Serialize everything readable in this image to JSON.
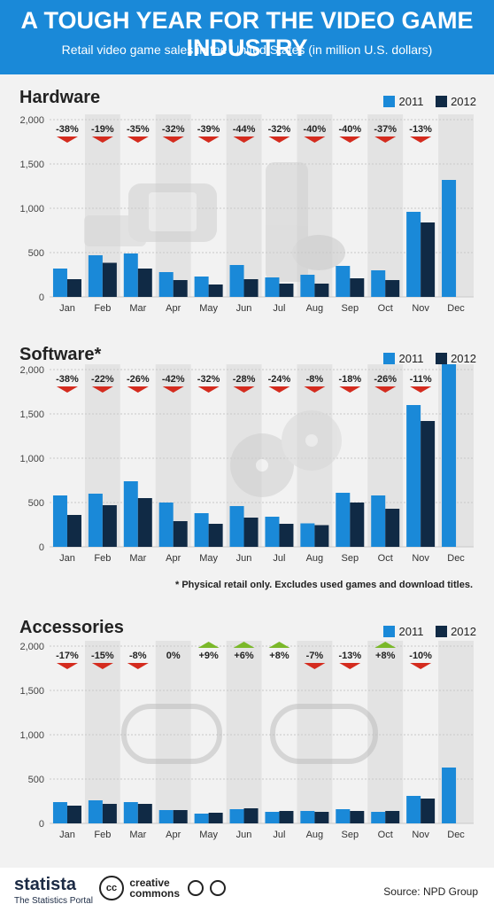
{
  "header": {
    "title": "A TOUGH YEAR FOR THE VIDEO GAME INDUSTRY",
    "subtitle": "Retail video game sales in the United States (in million U.S. dollars)"
  },
  "legend": {
    "label_2011": "2011",
    "label_2012": "2012"
  },
  "colors": {
    "c2011": "#1a89d8",
    "c2012": "#102a45",
    "header": "#1a89d8",
    "down": "#d42b1e",
    "up": "#7ab829"
  },
  "icons": [
    "wii-u-console-icon",
    "xbox-360-console-icon",
    "game-disc-icon",
    "xbox-controller-icon",
    "playstation-controller-icon",
    "statista-logo-icon",
    "creative-commons-icon"
  ],
  "chart_data": [
    {
      "type": "bar",
      "title": "Hardware",
      "categories": [
        "Jan",
        "Feb",
        "Mar",
        "Apr",
        "May",
        "Jun",
        "Jul",
        "Aug",
        "Sep",
        "Oct",
        "Nov",
        "Dec"
      ],
      "ylim": [
        0,
        2000
      ],
      "yticks": [
        "0",
        "500",
        "1,000",
        "1,500",
        "2,000"
      ],
      "series": [
        {
          "name": "2011",
          "values": [
            320,
            470,
            490,
            280,
            230,
            360,
            220,
            250,
            350,
            300,
            960,
            1320
          ]
        },
        {
          "name": "2012",
          "values": [
            200,
            385,
            320,
            190,
            140,
            200,
            150,
            150,
            210,
            190,
            840,
            null
          ]
        }
      ],
      "changes": [
        "-38%",
        "-19%",
        "-35%",
        "-32%",
        "-39%",
        "-44%",
        "-32%",
        "-40%",
        "-40%",
        "-37%",
        "-13%",
        ""
      ],
      "footnote": ""
    },
    {
      "type": "bar",
      "title": "Software*",
      "categories": [
        "Jan",
        "Feb",
        "Mar",
        "Apr",
        "May",
        "Jun",
        "Jul",
        "Aug",
        "Sep",
        "Oct",
        "Nov",
        "Dec"
      ],
      "ylim": [
        0,
        2000
      ],
      "yticks": [
        "0",
        "500",
        "1,000",
        "1,500",
        "2,000"
      ],
      "series": [
        {
          "name": "2011",
          "values": [
            580,
            600,
            740,
            500,
            380,
            460,
            340,
            265,
            610,
            580,
            1600,
            2060
          ]
        },
        {
          "name": "2012",
          "values": [
            360,
            470,
            550,
            290,
            260,
            330,
            260,
            245,
            500,
            430,
            1420,
            null
          ]
        }
      ],
      "changes": [
        "-38%",
        "-22%",
        "-26%",
        "-42%",
        "-32%",
        "-28%",
        "-24%",
        "-8%",
        "-18%",
        "-26%",
        "-11%",
        ""
      ],
      "footnote": "* Physical retail only. Excludes used games and download titles."
    },
    {
      "type": "bar",
      "title": "Accessories",
      "categories": [
        "Jan",
        "Feb",
        "Mar",
        "Apr",
        "May",
        "Jun",
        "Jul",
        "Aug",
        "Sep",
        "Oct",
        "Nov",
        "Dec"
      ],
      "ylim": [
        0,
        2000
      ],
      "yticks": [
        "0",
        "500",
        "1,000",
        "1,500",
        "2,000"
      ],
      "series": [
        {
          "name": "2011",
          "values": [
            240,
            260,
            240,
            150,
            110,
            160,
            130,
            140,
            160,
            130,
            310,
            630
          ]
        },
        {
          "name": "2012",
          "values": [
            200,
            220,
            220,
            150,
            120,
            170,
            140,
            130,
            140,
            140,
            280,
            null
          ]
        }
      ],
      "changes": [
        "-17%",
        "-15%",
        "-8%",
        "0%",
        "+9%",
        "+6%",
        "+8%",
        "-7%",
        "-13%",
        "+8%",
        "-10%",
        ""
      ],
      "footnote": ""
    }
  ],
  "footer": {
    "brand": "statista",
    "brand_sub": "The Statistics Portal",
    "cc_line1": "creative",
    "cc_line2": "commons",
    "cc_badge": "cc",
    "source": "Source: NPD Group"
  }
}
